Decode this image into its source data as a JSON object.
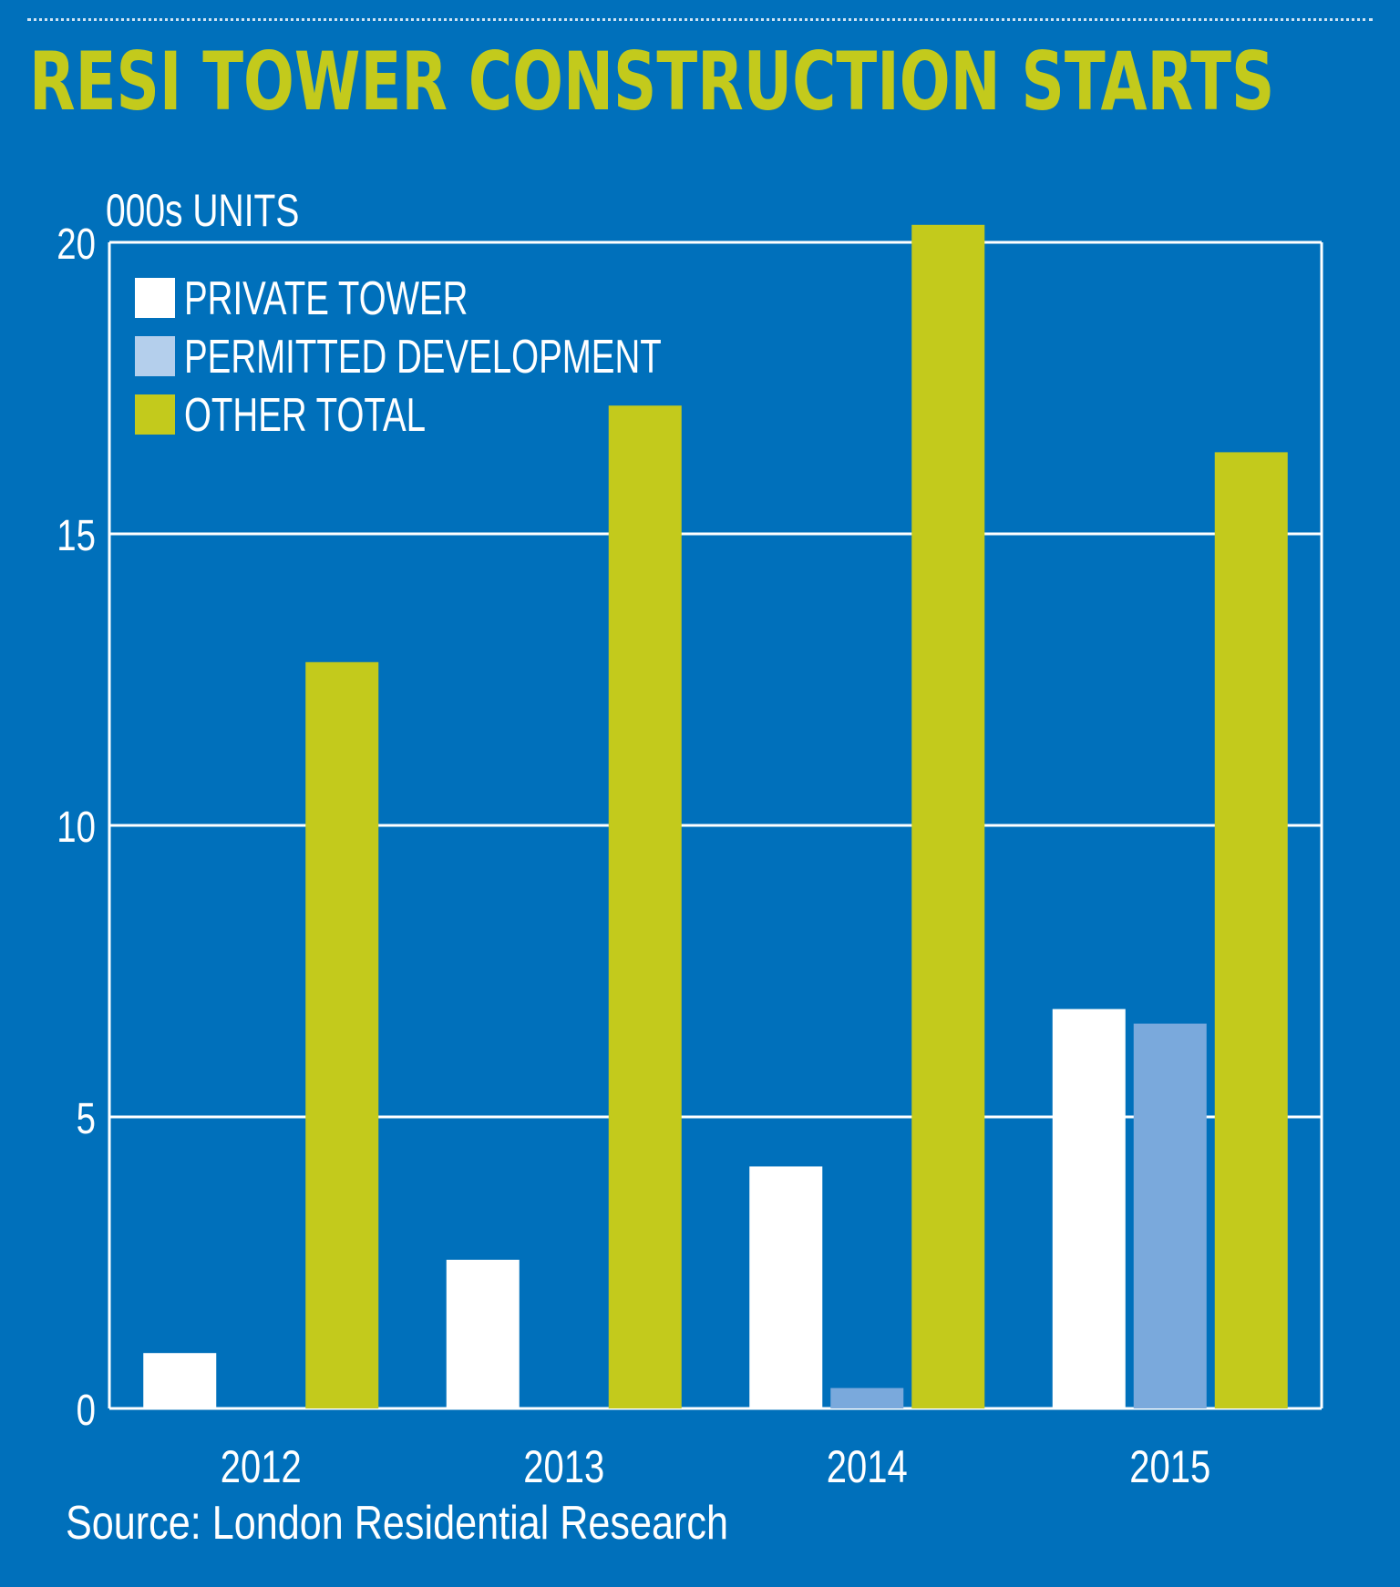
{
  "header": {
    "title": "RESI TOWER CONSTRUCTION STARTS"
  },
  "footer": {
    "source": "Source: London Residential Research"
  },
  "colors": {
    "background": "#0070bb",
    "title": "#c3ca1c",
    "gridline": "#ffffff",
    "private_tower": "#ffffff",
    "permitted_development": "#7aa9dc",
    "permitted_development_legend": "#b4cfec",
    "other_total": "#c3ca1c"
  },
  "chart_data": {
    "type": "bar",
    "title": "RESI TOWER CONSTRUCTION STARTS",
    "ylabel": "000s UNITS",
    "xlabel": "",
    "ylim": [
      0,
      20
    ],
    "yticks": [
      0,
      5,
      10,
      15,
      20
    ],
    "categories": [
      "2012",
      "2013",
      "2014",
      "2015"
    ],
    "grid": true,
    "legend_position": "top-left",
    "series": [
      {
        "name": "PRIVATE TOWER",
        "color": "#ffffff",
        "values": [
          0.95,
          2.55,
          4.15,
          6.85
        ]
      },
      {
        "name": "PERMITTED DEVELOPMENT",
        "color": "#7aa9dc",
        "legend_color": "#b4cfec",
        "values": [
          0,
          0,
          0.35,
          6.6
        ]
      },
      {
        "name": "OTHER TOTAL",
        "color": "#c3ca1c",
        "values": [
          12.8,
          17.2,
          20.3,
          16.4
        ]
      }
    ],
    "source": "Source: London Residential Research"
  }
}
